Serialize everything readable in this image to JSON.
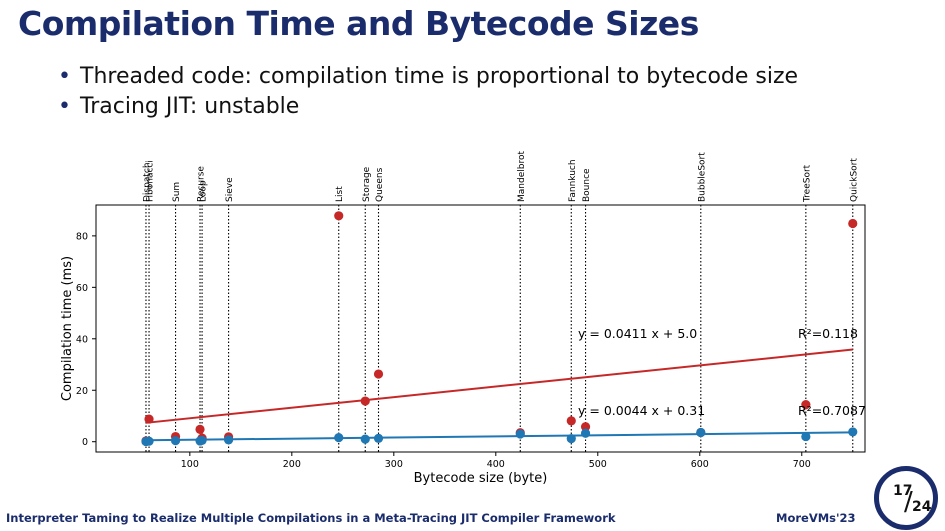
{
  "slide": {
    "title": "Compilation Time and Bytecode Sizes",
    "bullets": [
      "Threaded code: compilation time is proportional to bytecode size",
      "Tracing JIT: unstable"
    ]
  },
  "footer": {
    "left": "Interpreter Taming to Realize Multiple Compilations in a Meta-Tracing JIT Compiler Framework",
    "right": "MoreVMs'23",
    "page_current": "17",
    "page_total": "24",
    "accent_color": "#1a2c6b"
  },
  "chart_data": {
    "type": "scatter",
    "xlabel": "Bytecode size (byte)",
    "ylabel": "Compilation time (ms)",
    "xlim": [
      8,
      762
    ],
    "ylim": [
      -4,
      92
    ],
    "xticks": [
      100,
      200,
      300,
      400,
      500,
      600,
      700
    ],
    "yticks": [
      0,
      20,
      40,
      60,
      80
    ],
    "grid": false,
    "benchmarks": [
      {
        "name": "Dispatch",
        "x": 57
      },
      {
        "name": "Fibonacci",
        "x": 60
      },
      {
        "name": "Sum",
        "x": 86
      },
      {
        "name": "Recurse",
        "x": 110
      },
      {
        "name": "Loop",
        "x": 112
      },
      {
        "name": "Sieve",
        "x": 138
      },
      {
        "name": "List",
        "x": 246
      },
      {
        "name": "Storage",
        "x": 272
      },
      {
        "name": "Queens",
        "x": 285
      },
      {
        "name": "Mandelbrot",
        "x": 424
      },
      {
        "name": "Fannkuch",
        "x": 474
      },
      {
        "name": "Bounce",
        "x": 488
      },
      {
        "name": "BubbleSort",
        "x": 601
      },
      {
        "name": "TreeSort",
        "x": 704
      },
      {
        "name": "QuickSort",
        "x": 750
      }
    ],
    "series": [
      {
        "color": "#c62828",
        "x": [
          57,
          60,
          86,
          110,
          112,
          138,
          246,
          272,
          285,
          424,
          474,
          488,
          601,
          704,
          750
        ],
        "y": [
          0.3,
          8.8,
          2.0,
          4.8,
          1.4,
          1.9,
          87.8,
          15.8,
          26.3,
          3.5,
          8.1,
          5.8,
          3.6,
          14.4,
          84.8
        ],
        "fit": {
          "slope": 0.0411,
          "intercept": 5.0,
          "equation": "y = 0.0411 x + 5.0",
          "r2": "R²=0.118"
        }
      },
      {
        "color": "#1f77b4",
        "x": [
          57,
          60,
          86,
          110,
          112,
          138,
          246,
          272,
          285,
          424,
          474,
          488,
          601,
          704,
          750
        ],
        "y": [
          0.1,
          0.2,
          0.4,
          0.3,
          0.5,
          0.7,
          1.6,
          1.0,
          1.3,
          3.0,
          1.2,
          3.3,
          3.6,
          2.0,
          3.8
        ],
        "fit": {
          "slope": 0.0044,
          "intercept": 0.31,
          "equation": "y = 0.0044 x + 0.31",
          "r2": "R²=0.7087"
        }
      }
    ]
  }
}
